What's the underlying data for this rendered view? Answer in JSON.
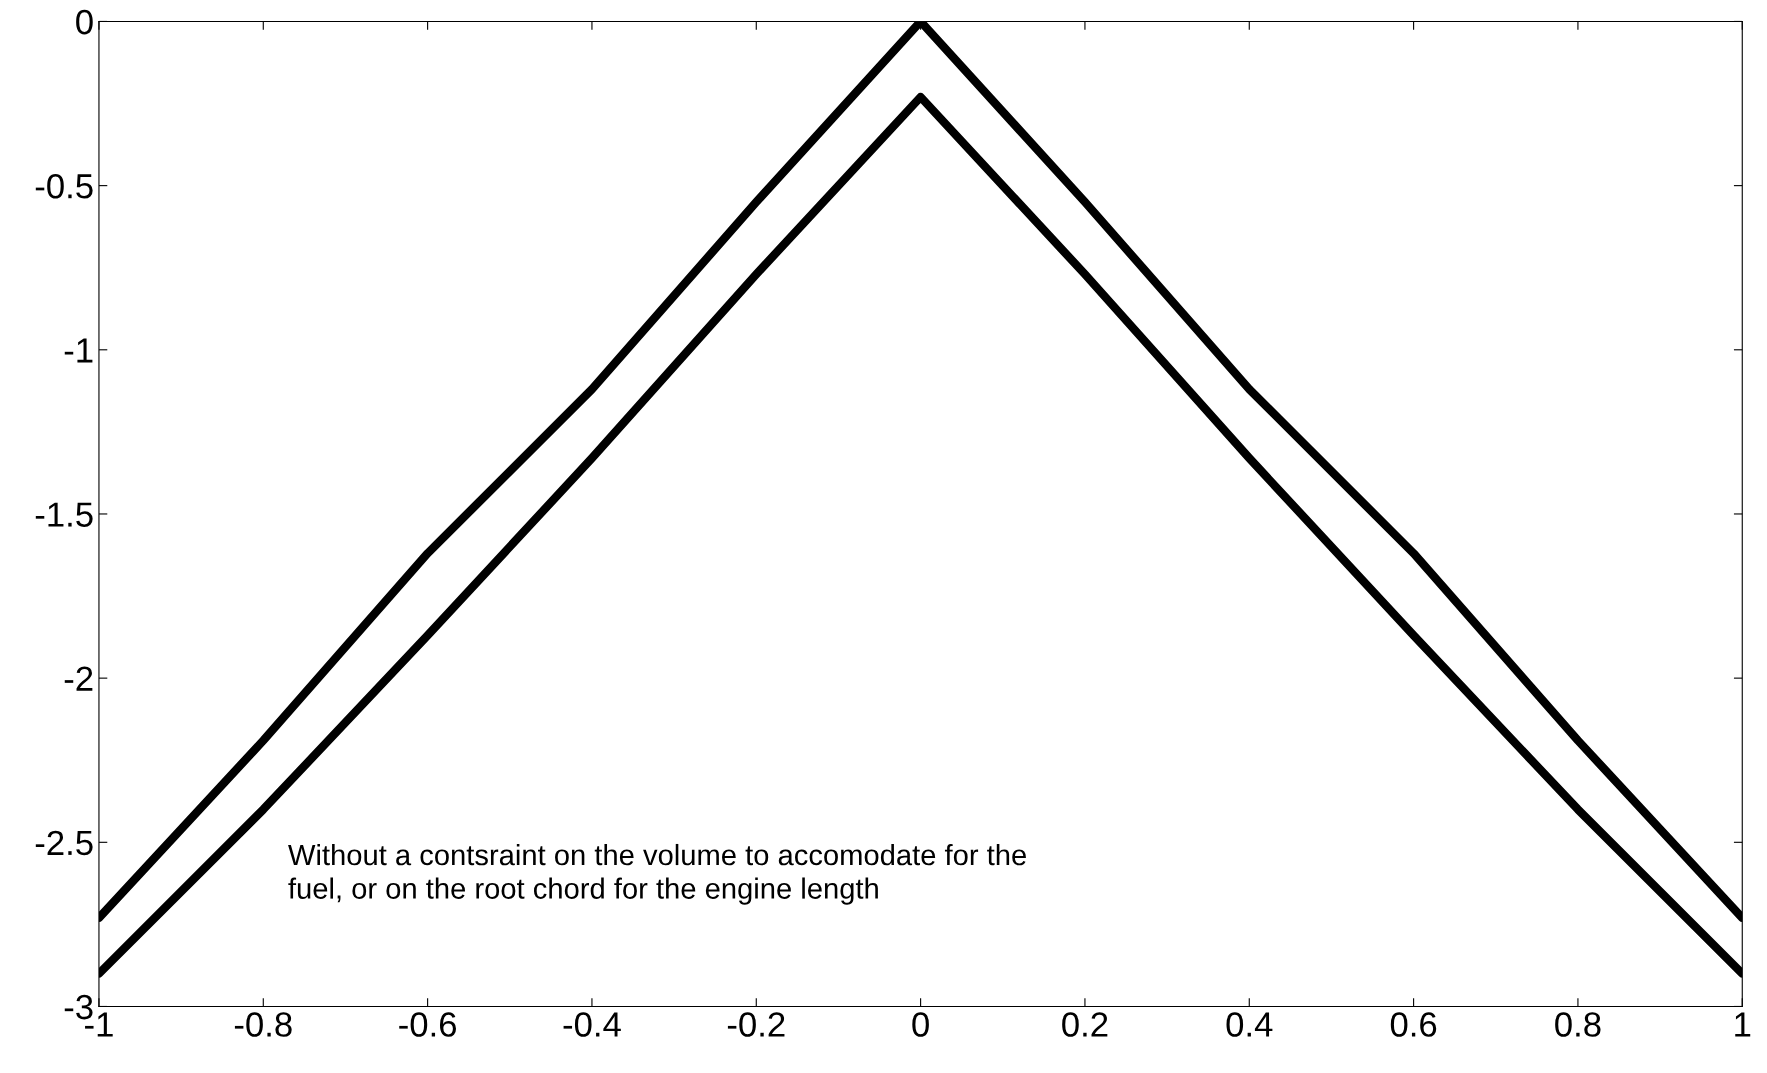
{
  "chart_data": {
    "type": "line",
    "x": [
      -1,
      -0.8,
      -0.6,
      -0.4,
      -0.2,
      0,
      0.2,
      0.4,
      0.6,
      0.8,
      1
    ],
    "series": [
      {
        "color": "#000000",
        "values": [
          -2.73,
          -2.19,
          -1.62,
          -1.12,
          -0.55,
          0,
          -0.55,
          -1.12,
          -1.62,
          -2.19,
          -2.73
        ]
      },
      {
        "color": "#000000",
        "values": [
          -2.9,
          -2.4,
          -1.87,
          -1.33,
          -0.77,
          -0.23,
          -0.77,
          -1.33,
          -1.87,
          -2.4,
          -2.9
        ]
      }
    ],
    "xlim": [
      -1,
      1
    ],
    "xticks": [
      -1,
      -0.8,
      -0.6,
      -0.4,
      -0.2,
      0,
      0.2,
      0.4,
      0.6,
      0.8,
      1
    ],
    "ylim": [
      -3,
      0
    ],
    "yticks": [
      -3,
      -2.5,
      -2,
      -1.5,
      -1,
      -0.5,
      0
    ],
    "annotations": [
      "Without a contsraint on the volume to accomodate for the\nfuel, or on the root chord for the engine length"
    ],
    "grid": false,
    "legend": false,
    "line_style": "solid",
    "marker": "none"
  }
}
